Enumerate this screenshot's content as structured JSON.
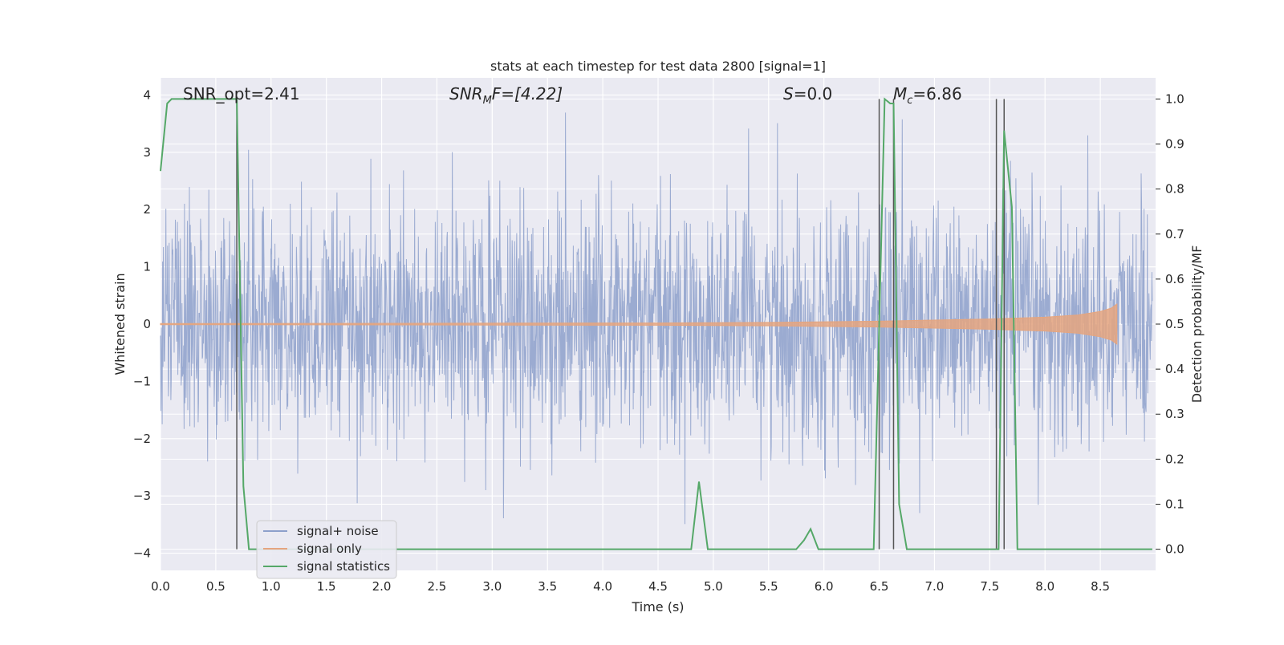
{
  "chart_data": {
    "type": "line",
    "title": "stats at each timestep for test data 2800 [signal=1]",
    "xlabel": "Time (s)",
    "ylabel_left": "Whitened strain",
    "ylabel_right": "Detection probability/MF",
    "xlim": [
      0,
      9.0
    ],
    "ylim_left": [
      -4.3,
      4.3
    ],
    "ylim_right": [
      -0.047,
      1.047
    ],
    "x_ticks": [
      "0.0",
      "0.5",
      "1.0",
      "1.5",
      "2.0",
      "2.5",
      "3.0",
      "3.5",
      "4.0",
      "4.5",
      "5.0",
      "5.5",
      "6.0",
      "6.5",
      "7.0",
      "7.5",
      "8.0",
      "8.5"
    ],
    "y_left_ticks": [
      "4",
      "3",
      "2",
      "1",
      "0",
      "−1",
      "−2",
      "−3",
      "−4"
    ],
    "y_right_ticks": [
      "1.0",
      "0.9",
      "0.8",
      "0.7",
      "0.6",
      "0.5",
      "0.4",
      "0.3",
      "0.2",
      "0.1",
      "0.0"
    ],
    "grid": true,
    "legend_position": "lower-left",
    "annotations": {
      "snr_opt": "SNR_opt=2.41",
      "snr_mf_main": "SNR",
      "snr_mf_sub": "M",
      "snr_mf_rest": "F=[4.22]",
      "s_main": "S",
      "s_rest": "=0.0",
      "mc_main": "M",
      "mc_sub": "c",
      "mc_rest": "=6.86"
    },
    "vertical_lines_x": [
      0.69,
      6.5,
      6.63,
      7.56,
      7.63
    ],
    "colors": {
      "noise": "#8da0cb",
      "signal": "#e5a57f",
      "stats": "#55a868",
      "vline": "#555555",
      "background": "#eaeaf2"
    },
    "series": [
      {
        "name": "signal+ noise",
        "axis": "left",
        "description_values": "dense noise trace, amplitude range approx -3.9 to 4.0"
      },
      {
        "name": "signal only",
        "axis": "left",
        "x": [
          0,
          4.5,
          5.5,
          6.5,
          7.0,
          7.5,
          8.0,
          8.3,
          8.5,
          8.6,
          8.65
        ],
        "envelope": [
          0.01,
          0.02,
          0.03,
          0.05,
          0.07,
          0.09,
          0.12,
          0.16,
          0.22,
          0.28,
          0.35
        ]
      },
      {
        "name": "signal statistics",
        "axis": "right",
        "x": [
          0.0,
          0.06,
          0.1,
          0.2,
          0.3,
          0.4,
          0.5,
          0.6,
          0.69,
          0.75,
          0.8,
          0.9,
          1.0,
          2.0,
          3.0,
          4.0,
          4.7,
          4.8,
          4.87,
          4.95,
          5.0,
          5.5,
          5.75,
          5.82,
          5.88,
          5.95,
          6.0,
          6.45,
          6.5,
          6.55,
          6.6,
          6.63,
          6.68,
          6.75,
          6.8,
          7.0,
          7.5,
          7.58,
          7.63,
          7.7,
          7.75,
          7.8,
          8.0,
          8.5,
          8.97
        ],
        "values": [
          0.84,
          0.99,
          1.0,
          1.0,
          1.0,
          1.0,
          1.0,
          1.0,
          1.0,
          0.14,
          0.0,
          0.0,
          0.0,
          0.0,
          0.0,
          0.0,
          0.0,
          0.0,
          0.15,
          0.0,
          0.0,
          0.0,
          0.0,
          0.02,
          0.045,
          0.0,
          0.0,
          0.0,
          0.5,
          1.0,
          0.99,
          0.99,
          0.1,
          0.0,
          0.0,
          0.0,
          0.0,
          0.0,
          0.93,
          0.76,
          0.0,
          0.0,
          0.0,
          0.0,
          0.0
        ]
      }
    ]
  },
  "legend": {
    "noise_label": "signal+ noise",
    "signal_label": "signal only",
    "stats_label": "signal statistics"
  }
}
